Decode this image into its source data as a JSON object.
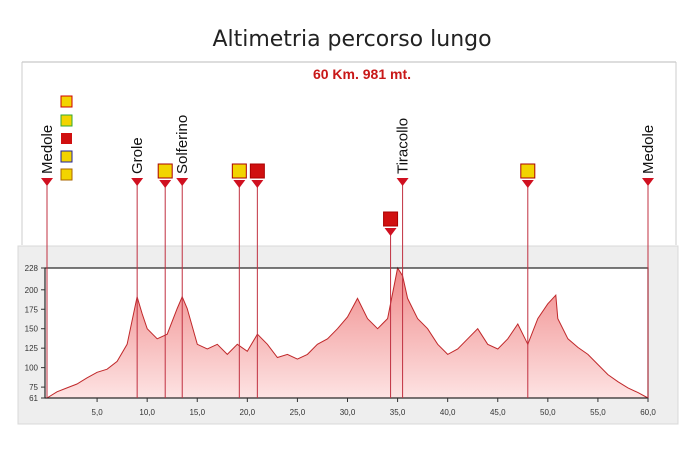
{
  "chart_data": {
    "type": "area",
    "title": "Altimetria percorso lungo",
    "subtitle": "60 Km. 981 mt.",
    "x": [
      0,
      1,
      2,
      3,
      4,
      5,
      6,
      7,
      8,
      9,
      9.5,
      10,
      11,
      12,
      13,
      13.5,
      14,
      15,
      16,
      17,
      18,
      19,
      20,
      21,
      22,
      23,
      24,
      25,
      26,
      27,
      28,
      29,
      30,
      31,
      32,
      33,
      34,
      35,
      35.5,
      36,
      37,
      38,
      39,
      40,
      41,
      42,
      43,
      44,
      45,
      46,
      47,
      48,
      49,
      50,
      50.8,
      51,
      52,
      53,
      54,
      55,
      56,
      57,
      58,
      59,
      60
    ],
    "values": [
      61,
      69,
      74,
      79,
      87,
      94,
      98,
      108,
      130,
      191,
      169,
      150,
      137,
      143,
      176,
      191,
      176,
      130,
      124,
      130,
      117,
      130,
      121,
      143,
      130,
      113,
      117,
      111,
      117,
      130,
      137,
      150,
      165,
      189,
      163,
      150,
      163,
      228,
      218,
      189,
      163,
      150,
      130,
      117,
      124,
      137,
      150,
      130,
      124,
      137,
      156,
      130,
      163,
      182,
      193,
      163,
      137,
      126,
      117,
      104,
      91,
      82,
      74,
      68,
      61
    ],
    "color": "#c0282a",
    "xlim": [
      0,
      60
    ],
    "ylim": [
      61,
      228
    ],
    "yticks": [
      61,
      75,
      100,
      125,
      150,
      175,
      200,
      228
    ],
    "xticks": [
      {
        "value": 5,
        "label": "5,0"
      },
      {
        "value": 10,
        "label": "10,0"
      },
      {
        "value": 15,
        "label": "15,0"
      },
      {
        "value": 20,
        "label": "20,0"
      },
      {
        "value": 25,
        "label": "25,0"
      },
      {
        "value": 30,
        "label": "30,0"
      },
      {
        "value": 35,
        "label": "35,0"
      },
      {
        "value": 40,
        "label": "40,0"
      },
      {
        "value": 45,
        "label": "45,0"
      },
      {
        "value": 50,
        "label": "50,0"
      },
      {
        "value": 55,
        "label": "55,0"
      },
      {
        "value": 60,
        "label": "60,0"
      }
    ],
    "places": [
      {
        "name": "Medole",
        "km": 0
      },
      {
        "name": "Grole",
        "km": 9
      },
      {
        "name": "Solferino",
        "km": 13.5
      },
      {
        "name": "Tiracollo",
        "km": 35.5
      },
      {
        "name": "Medole",
        "km": 60
      }
    ],
    "services": [
      {
        "km": 11.8,
        "color": "#f2d400"
      },
      {
        "km": 19.2,
        "color": "#f2d400"
      },
      {
        "km": 21,
        "color": "#d01010"
      },
      {
        "km": 34.3,
        "color": "#d01010"
      },
      {
        "km": 48,
        "color": "#f2d400"
      }
    ]
  }
}
